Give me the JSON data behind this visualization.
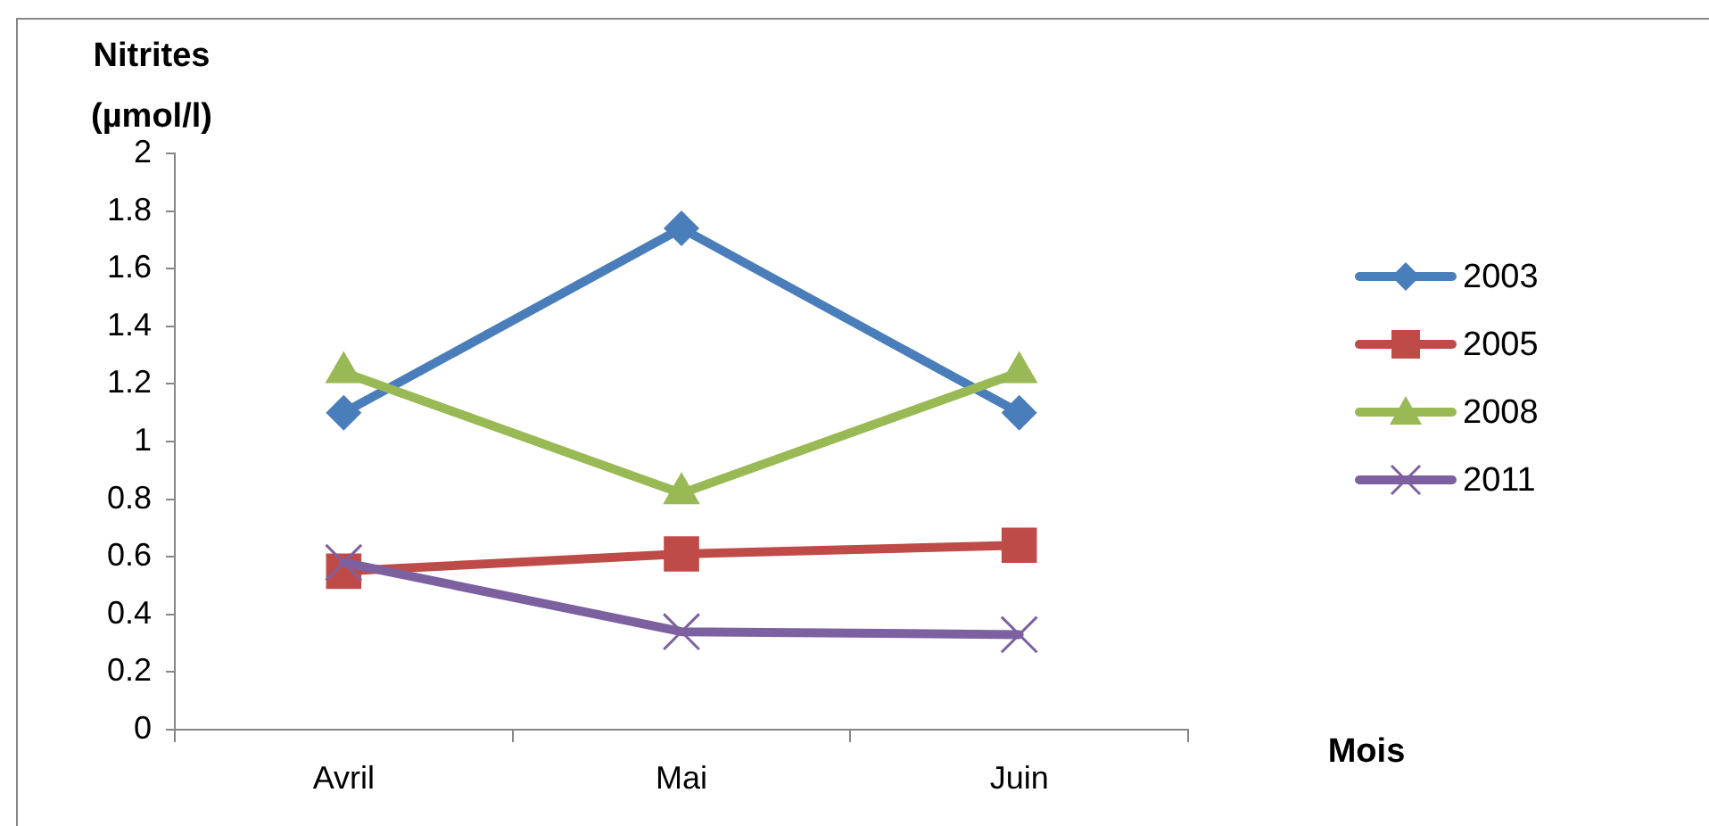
{
  "chart_data": {
    "type": "line",
    "xlabel": "Mois",
    "ylabel": "Nitrites (µmol/l)",
    "categories": [
      "Avril",
      "Mai",
      "Juin"
    ],
    "series": [
      {
        "name": "2003",
        "color": "#4a7ebb",
        "marker": "diamond",
        "values": [
          1.1,
          1.74,
          1.1
        ]
      },
      {
        "name": "2005",
        "color": "#be4b48",
        "marker": "square",
        "values": [
          0.55,
          0.61,
          0.64
        ]
      },
      {
        "name": "2008",
        "color": "#98b954",
        "marker": "triangle",
        "values": [
          1.24,
          0.82,
          1.24
        ]
      },
      {
        "name": "2011",
        "color": "#7d60a0",
        "marker": "cross",
        "values": [
          0.58,
          0.34,
          0.33
        ]
      }
    ],
    "ylim": [
      0,
      2
    ],
    "yticks": [
      0,
      0.2,
      0.4,
      0.6,
      0.8,
      1,
      1.2,
      1.4,
      1.6,
      1.8,
      2
    ],
    "legend": "right",
    "line_style": "solid"
  }
}
